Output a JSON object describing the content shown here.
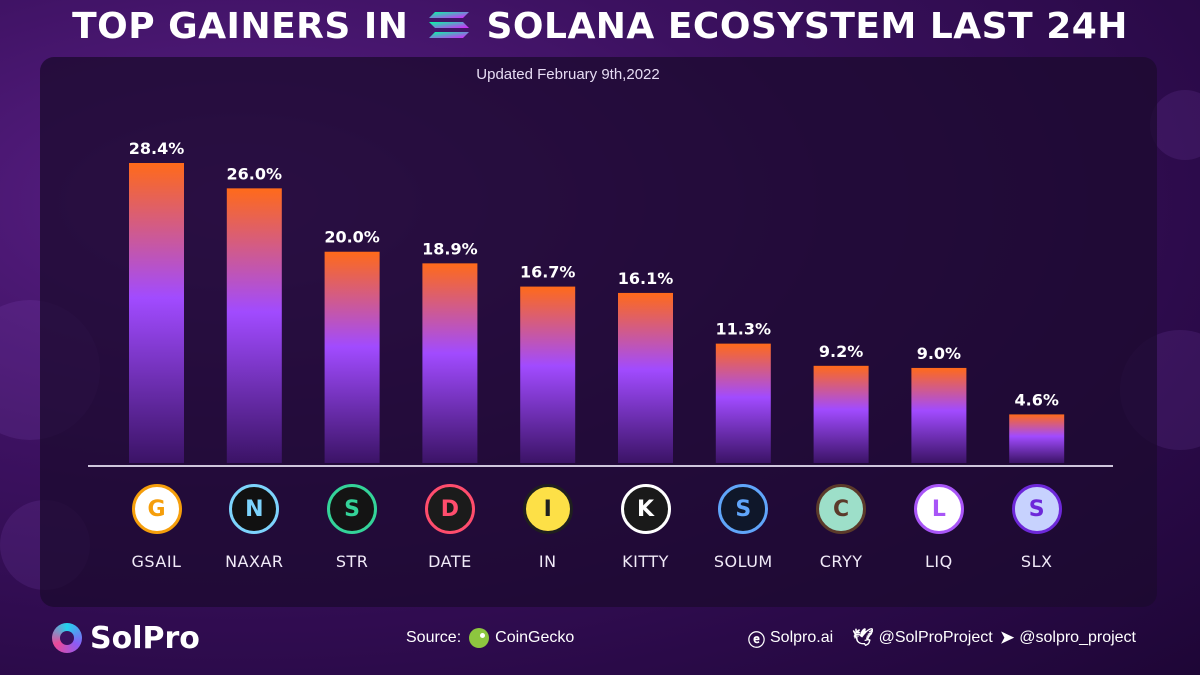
{
  "header": {
    "title_part1": "TOP GAINERS IN",
    "title_part2": "SOLANA ECOSYSTEM LAST 24H",
    "updated": "Updated February 9th,2022"
  },
  "chart_data": {
    "type": "bar",
    "title": "TOP GAINERS IN SOLANA ECOSYSTEM LAST 24H",
    "subtitle": "Updated February 9th,2022",
    "categories": [
      "GSAIL",
      "NAXAR",
      "STR",
      "DATE",
      "IN",
      "KITTY",
      "SOLUM",
      "CRYY",
      "LIQ",
      "SLX"
    ],
    "values": [
      28.4,
      26.0,
      20.0,
      18.9,
      16.7,
      16.1,
      11.3,
      9.2,
      9.0,
      4.6
    ],
    "value_labels": [
      "28.4%",
      "26.0%",
      "20.0%",
      "18.9%",
      "16.7%",
      "16.1%",
      "11.3%",
      "9.2%",
      "9.0%",
      "4.6%"
    ],
    "xlabel": "",
    "ylabel": "",
    "ylim": [
      0,
      28.4
    ],
    "grid": false,
    "colors": {
      "bar_top": "#ff6a1a",
      "bar_mid": "#a14bff",
      "bar_bottom": "#3b1366",
      "baseline": "#cfc6dd"
    }
  },
  "coins": [
    {
      "symbol": "GSAIL",
      "icon": "gsail-logo-icon",
      "bg": "#ffffff",
      "fg": "#f59e0b"
    },
    {
      "symbol": "NAXAR",
      "icon": "naxar-logo-icon",
      "bg": "#111111",
      "fg": "#7dd3fc"
    },
    {
      "symbol": "STR",
      "icon": "str-logo-icon",
      "bg": "#141414",
      "fg": "#34d399"
    },
    {
      "symbol": "DATE",
      "icon": "date-heart-icon",
      "bg": "#1b1b1b",
      "fg": "#ff4d6d"
    },
    {
      "symbol": "IN",
      "icon": "owl-logo-icon",
      "bg": "#fde047",
      "fg": "#1f1f1f"
    },
    {
      "symbol": "KITTY",
      "icon": "kitty-logo-icon",
      "bg": "#1a1a1a",
      "fg": "#ffffff"
    },
    {
      "symbol": "SOLUM",
      "icon": "solum-logo-icon",
      "bg": "#0f172a",
      "fg": "#60a5fa"
    },
    {
      "symbol": "CRYY",
      "icon": "cryy-cat-icon",
      "bg": "#9ddfc9",
      "fg": "#5b3a2a"
    },
    {
      "symbol": "LIQ",
      "icon": "liq-drop-icon",
      "bg": "#ffffff",
      "fg": "#a855f7"
    },
    {
      "symbol": "SLX",
      "icon": "slx-logo-icon",
      "bg": "#c7d2fe",
      "fg": "#6d28d9"
    }
  ],
  "footer": {
    "brand": "SolPro",
    "source_label": "Source:",
    "source_name": "CoinGecko",
    "website": "Solpro.ai",
    "twitter": "@SolProProject",
    "telegram": "@solpro_project"
  }
}
